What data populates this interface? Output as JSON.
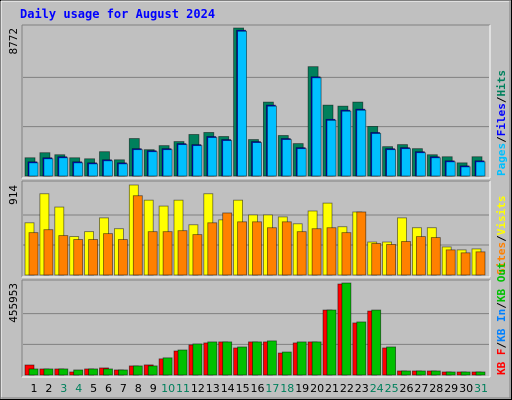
{
  "chart_data": [
    {
      "type": "bar",
      "title": "Daily usage for August 2024",
      "legend_separator": "/",
      "ylim": [
        0,
        8772
      ],
      "yticks": [
        8772
      ],
      "series": [
        {
          "name": "Pages",
          "color": "#00c0ff",
          "values": [
            780,
            1020,
            1080,
            780,
            720,
            900,
            720,
            1560,
            1440,
            1560,
            1860,
            1800,
            2280,
            2100,
            8580,
            1980,
            4140,
            2160,
            1620,
            5820,
            3300,
            3840,
            3900,
            2520,
            1560,
            1620,
            1380,
            1080,
            840,
            540,
            840
          ]
        },
        {
          "name": "Files",
          "color": "#0000ff",
          "values": [
            840,
            1080,
            1140,
            840,
            780,
            960,
            780,
            1620,
            1500,
            1620,
            1920,
            1860,
            2340,
            2160,
            8640,
            2040,
            4200,
            2220,
            1680,
            5880,
            3360,
            3900,
            3960,
            2580,
            1620,
            1680,
            1440,
            1140,
            900,
            600,
            900
          ]
        },
        {
          "name": "Hits",
          "color": "#00805c",
          "values": [
            1080,
            1380,
            1260,
            1080,
            1020,
            1440,
            960,
            2220,
            1560,
            1800,
            2040,
            2460,
            2580,
            2340,
            8772,
            2160,
            4380,
            2400,
            1920,
            6480,
            4200,
            4140,
            4380,
            2940,
            1740,
            1860,
            1620,
            1260,
            1140,
            780,
            1140
          ]
        }
      ]
    },
    {
      "type": "bar",
      "legend_separator": "/",
      "ylim": [
        0,
        914
      ],
      "yticks": [
        914
      ],
      "series": [
        {
          "name": "Sites",
          "color": "#ff8000",
          "values": [
            430,
            460,
            400,
            360,
            360,
            420,
            360,
            805,
            440,
            440,
            450,
            410,
            530,
            630,
            540,
            540,
            480,
            540,
            440,
            470,
            480,
            430,
            640,
            320,
            310,
            340,
            390,
            380,
            255,
            225,
            235
          ]
        },
        {
          "name": "Visits",
          "color": "#ffff00",
          "values": [
            530,
            825,
            690,
            390,
            440,
            580,
            470,
            914,
            760,
            700,
            760,
            510,
            825,
            560,
            760,
            610,
            610,
            590,
            520,
            650,
            730,
            490,
            640,
            335,
            335,
            580,
            480,
            480,
            285,
            255,
            265
          ]
        }
      ]
    },
    {
      "type": "bar",
      "legend_separator": "/",
      "ylim": [
        0,
        455953
      ],
      "yticks": [
        455953
      ],
      "categories": [
        "1",
        "2",
        "3",
        "4",
        "5",
        "6",
        "7",
        "8",
        "9",
        "10",
        "11",
        "12",
        "13",
        "14",
        "15",
        "16",
        "17",
        "18",
        "19",
        "20",
        "21",
        "22",
        "23",
        "24",
        "25",
        "26",
        "27",
        "28",
        "29",
        "30",
        "31"
      ],
      "category_colors": [
        "#000000",
        "#000000",
        "#00805c",
        "#00805c",
        "#000000",
        "#000000",
        "#000000",
        "#000000",
        "#000000",
        "#00805c",
        "#00805c",
        "#000000",
        "#000000",
        "#000000",
        "#000000",
        "#000000",
        "#00805c",
        "#00805c",
        "#000000",
        "#000000",
        "#000000",
        "#000000",
        "#000000",
        "#00805c",
        "#00805c",
        "#000000",
        "#000000",
        "#000000",
        "#000000",
        "#000000",
        "#00805c"
      ],
      "series": [
        {
          "name": "KB F",
          "color": "#ff0000",
          "values": [
            49600,
            30000,
            30000,
            15000,
            30000,
            35000,
            25000,
            45000,
            50000,
            80000,
            119000,
            149000,
            159000,
            164000,
            134000,
            164000,
            164000,
            109000,
            159000,
            164000,
            322000,
            451000,
            258000,
            317000,
            134000,
            20000,
            20000,
            20000,
            15000,
            15000,
            15000
          ]
        },
        {
          "name": "KB In",
          "color": "#0080ff",
          "values": [
            0,
            0,
            0,
            0,
            0,
            0,
            0,
            0,
            0,
            0,
            0,
            0,
            0,
            0,
            0,
            0,
            0,
            0,
            0,
            0,
            0,
            0,
            0,
            0,
            0,
            0,
            0,
            0,
            0,
            0,
            0
          ]
        },
        {
          "name": "KB Out",
          "color": "#00c000",
          "values": [
            30000,
            30000,
            30000,
            25000,
            30000,
            30000,
            25000,
            45000,
            45000,
            85000,
            124000,
            154000,
            164000,
            164000,
            139000,
            164000,
            169000,
            114000,
            164000,
            164000,
            322000,
            455953,
            263000,
            322000,
            139000,
            20000,
            20000,
            20000,
            15000,
            15000,
            15000
          ]
        }
      ]
    }
  ]
}
